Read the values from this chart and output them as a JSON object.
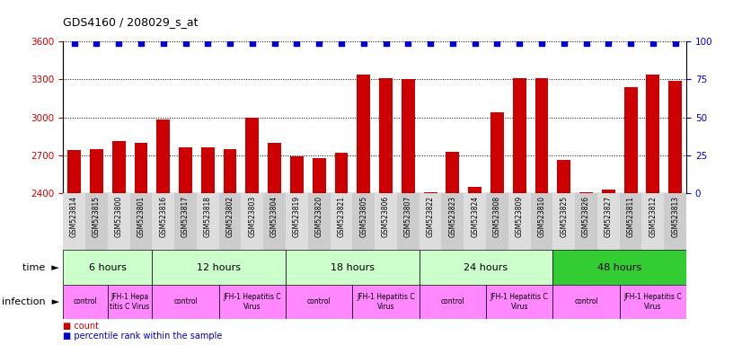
{
  "title": "GDS4160 / 208029_s_at",
  "samples": [
    "GSM523814",
    "GSM523815",
    "GSM523800",
    "GSM523801",
    "GSM523816",
    "GSM523817",
    "GSM523818",
    "GSM523802",
    "GSM523803",
    "GSM523804",
    "GSM523819",
    "GSM523820",
    "GSM523821",
    "GSM523805",
    "GSM523806",
    "GSM523807",
    "GSM523822",
    "GSM523823",
    "GSM523824",
    "GSM523808",
    "GSM523809",
    "GSM523810",
    "GSM523825",
    "GSM523826",
    "GSM523827",
    "GSM523811",
    "GSM523812",
    "GSM523813"
  ],
  "counts": [
    2740,
    2745,
    2810,
    2800,
    2985,
    2760,
    2760,
    2750,
    3000,
    2800,
    2690,
    2680,
    2720,
    3340,
    3310,
    3300,
    2410,
    2730,
    2450,
    3040,
    3310,
    3310,
    2660,
    2410,
    2430,
    3240,
    3340,
    3290
  ],
  "percentile_ranks": [
    99,
    99,
    99,
    99,
    99,
    99,
    99,
    99,
    99,
    99,
    99,
    99,
    99,
    99,
    99,
    99,
    99,
    99,
    99,
    99,
    99,
    99,
    99,
    99,
    99,
    99,
    99,
    99
  ],
  "ylim_left": [
    2400,
    3600
  ],
  "ylim_right": [
    0,
    100
  ],
  "yticks_left": [
    2400,
    2700,
    3000,
    3300,
    3600
  ],
  "yticks_right": [
    0,
    25,
    50,
    75,
    100
  ],
  "bar_color": "#cc0000",
  "percentile_color": "#0000cc",
  "time_groups": [
    {
      "label": "6 hours",
      "start": 0,
      "end": 4,
      "color": "#ccffcc"
    },
    {
      "label": "12 hours",
      "start": 4,
      "end": 10,
      "color": "#ccffcc"
    },
    {
      "label": "18 hours",
      "start": 10,
      "end": 16,
      "color": "#ccffcc"
    },
    {
      "label": "24 hours",
      "start": 16,
      "end": 22,
      "color": "#ccffcc"
    },
    {
      "label": "48 hours",
      "start": 22,
      "end": 28,
      "color": "#33cc33"
    }
  ],
  "infection_groups": [
    {
      "label": "control",
      "start": 0,
      "end": 2
    },
    {
      "label": "JFH-1 Hepa\ntitis C Virus",
      "start": 2,
      "end": 4
    },
    {
      "label": "control",
      "start": 4,
      "end": 7
    },
    {
      "label": "JFH-1 Hepatitis C\nVirus",
      "start": 7,
      "end": 10
    },
    {
      "label": "control",
      "start": 10,
      "end": 13
    },
    {
      "label": "JFH-1 Hepatitis C\nVirus",
      "start": 13,
      "end": 16
    },
    {
      "label": "control",
      "start": 16,
      "end": 19
    },
    {
      "label": "JFH-1 Hepatitis C\nVirus",
      "start": 19,
      "end": 22
    },
    {
      "label": "control",
      "start": 22,
      "end": 25
    },
    {
      "label": "JFH-1 Hepatitis C\nVirus",
      "start": 25,
      "end": 28
    }
  ],
  "infection_color": "#ff88ff"
}
